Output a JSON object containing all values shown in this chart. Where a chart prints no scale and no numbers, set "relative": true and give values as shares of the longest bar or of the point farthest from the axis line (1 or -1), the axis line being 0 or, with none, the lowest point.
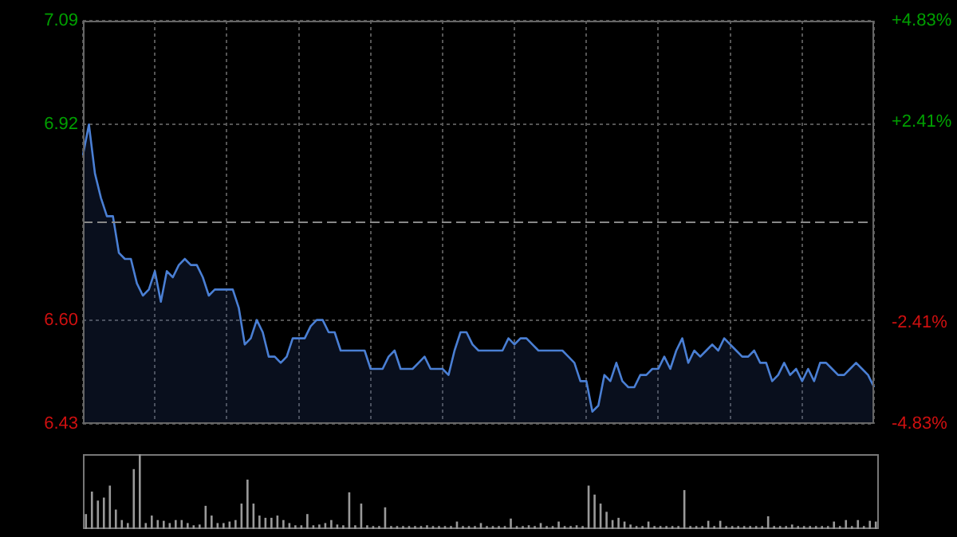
{
  "chart_data": [
    {
      "type": "area",
      "categories": [
        null,
        null,
        null,
        null,
        null,
        null,
        null,
        null,
        null,
        null,
        null,
        null,
        null,
        null,
        null,
        null,
        null,
        null,
        null,
        null,
        null,
        null,
        null,
        null,
        null,
        null,
        null,
        null,
        null,
        null,
        null,
        null,
        null,
        null,
        null,
        null,
        null,
        null,
        null,
        null,
        null,
        null,
        null,
        null,
        null,
        null,
        null,
        null,
        null,
        null,
        null,
        null,
        null,
        null,
        null,
        null,
        null,
        null,
        null,
        null,
        null,
        null,
        null,
        null,
        null,
        null,
        null,
        null,
        null,
        null,
        null,
        null,
        null,
        null,
        null,
        null,
        null,
        null,
        null,
        null,
        null,
        null,
        null,
        null,
        null,
        null,
        null,
        null,
        null,
        null,
        null,
        null,
        null,
        null,
        null,
        null,
        null,
        null,
        null,
        null,
        null,
        null,
        null,
        null,
        null,
        null,
        null,
        null,
        null,
        null,
        null,
        null,
        null,
        null,
        null,
        null,
        null,
        null,
        null,
        null,
        null,
        null,
        null,
        null,
        null,
        null,
        null,
        null,
        null,
        null,
        null,
        null,
        null
      ],
      "series": [
        {
          "color": "#4a7fd4",
          "values": [
            6.87,
            6.92,
            6.84,
            6.8,
            6.77,
            6.77,
            6.71,
            6.7,
            6.7,
            6.66,
            6.64,
            6.65,
            6.68,
            6.63,
            6.68,
            6.67,
            6.69,
            6.7,
            6.69,
            6.69,
            6.67,
            6.64,
            6.65,
            6.65,
            6.65,
            6.65,
            6.62,
            6.56,
            6.57,
            6.6,
            6.58,
            6.54,
            6.54,
            6.53,
            6.54,
            6.57,
            6.57,
            6.57,
            6.59,
            6.6,
            6.6,
            6.58,
            6.58,
            6.55,
            6.55,
            6.55,
            6.55,
            6.55,
            6.52,
            6.52,
            6.52,
            6.54,
            6.55,
            6.52,
            6.52,
            6.52,
            6.53,
            6.54,
            6.52,
            6.52,
            6.52,
            6.51,
            6.55,
            6.58,
            6.58,
            6.56,
            6.55,
            6.55,
            6.55,
            6.55,
            6.55,
            6.57,
            6.56,
            6.57,
            6.57,
            6.56,
            6.55,
            6.55,
            6.55,
            6.55,
            6.55,
            6.54,
            6.53,
            6.5,
            6.5,
            6.45,
            6.46,
            6.51,
            6.5,
            6.53,
            6.5,
            6.49,
            6.49,
            6.51,
            6.51,
            6.52,
            6.52,
            6.54,
            6.52,
            6.55,
            6.57,
            6.53,
            6.55,
            6.54,
            6.55,
            6.56,
            6.55,
            6.57,
            6.56,
            6.55,
            6.54,
            6.54,
            6.55,
            6.53,
            6.53,
            6.5,
            6.51,
            6.53,
            6.51,
            6.52,
            6.5,
            6.52,
            6.5,
            6.53,
            6.53,
            6.52,
            6.51,
            6.51,
            6.52,
            6.53,
            6.52,
            6.51,
            6.49
          ]
        }
      ],
      "ylim": [
        6.43,
        7.09
      ],
      "yticks": [
        7.09,
        {
          "value": 6.92,
          "label": "6.92"
        },
        {
          "value": 6.6,
          "label": "6.60"
        },
        6.43
      ],
      "y2lim": [
        -4.83,
        4.83
      ],
      "y2ticks": [
        {
          "value": 4.83,
          "label": "+4.83%"
        },
        {
          "value": 2.41,
          "label": "+2.41%"
        },
        {
          "value": -2.41,
          "label": "-2.41%"
        },
        {
          "value": -4.83,
          "label": "-4.83%"
        }
      ],
      "ref_lines": [
        {
          "axis": "y",
          "value": 6.76,
          "color": "#888888",
          "line_style": "dashed"
        }
      ],
      "grid": true,
      "legend": false,
      "marker": "none",
      "line_style": "solid"
    },
    {
      "type": "bar",
      "relative": true,
      "categories": [
        null,
        null,
        null,
        null,
        null,
        null,
        null,
        null,
        null,
        null,
        null,
        null,
        null,
        null,
        null,
        null,
        null,
        null,
        null,
        null,
        null,
        null,
        null,
        null,
        null,
        null,
        null,
        null,
        null,
        null,
        null,
        null,
        null,
        null,
        null,
        null,
        null,
        null,
        null,
        null,
        null,
        null,
        null,
        null,
        null,
        null,
        null,
        null,
        null,
        null,
        null,
        null,
        null,
        null,
        null,
        null,
        null,
        null,
        null,
        null,
        null,
        null,
        null,
        null,
        null,
        null,
        null,
        null,
        null,
        null,
        null,
        null,
        null,
        null,
        null,
        null,
        null,
        null,
        null,
        null,
        null,
        null,
        null,
        null,
        null,
        null,
        null,
        null,
        null,
        null,
        null,
        null,
        null,
        null,
        null,
        null,
        null,
        null,
        null,
        null,
        null,
        null,
        null,
        null,
        null,
        null,
        null,
        null,
        null,
        null,
        null,
        null,
        null,
        null,
        null,
        null,
        null,
        null,
        null,
        null,
        null,
        null,
        null,
        null,
        null,
        null,
        null,
        null,
        null,
        null,
        null,
        null,
        null
      ],
      "values": [
        0.2,
        0.5,
        0.38,
        0.42,
        0.58,
        0.26,
        0.12,
        0.08,
        0.8,
        1,
        0.08,
        0.18,
        0.12,
        0.11,
        0.08,
        0.12,
        0.12,
        0.08,
        0.05,
        0.06,
        0.31,
        0.18,
        0.08,
        0.08,
        0.1,
        0.12,
        0.34,
        0.66,
        0.34,
        0.18,
        0.15,
        0.15,
        0.18,
        0.12,
        0.08,
        0.05,
        0.05,
        0.2,
        0.05,
        0.06,
        0.08,
        0.12,
        0.06,
        0.05,
        0.49,
        0.05,
        0.34,
        0.05,
        0.04,
        0.04,
        0.29,
        0.04,
        0.04,
        0.04,
        0.04,
        0.04,
        0.04,
        0.05,
        0.04,
        0.04,
        0.04,
        0.04,
        0.1,
        0.04,
        0.04,
        0.04,
        0.08,
        0.04,
        0.04,
        0.04,
        0.04,
        0.14,
        0.04,
        0.04,
        0.05,
        0.04,
        0.08,
        0.04,
        0.04,
        0.1,
        0.04,
        0.04,
        0.05,
        0.04,
        0.58,
        0.46,
        0.34,
        0.23,
        0.12,
        0.15,
        0.1,
        0.06,
        0.04,
        0.04,
        0.1,
        0.04,
        0.04,
        0.04,
        0.04,
        0.04,
        0.52,
        0.04,
        0.04,
        0.04,
        0.11,
        0.04,
        0.11,
        0.04,
        0.04,
        0.04,
        0.04,
        0.04,
        0.04,
        0.04,
        0.17,
        0.04,
        0.04,
        0.04,
        0.06,
        0.04,
        0.04,
        0.04,
        0.04,
        0.04,
        0.04,
        0.1,
        0.04,
        0.12,
        0.04,
        0.12,
        0.04,
        0.11,
        0.1
      ],
      "color": "#999999",
      "grid": false,
      "legend": false
    }
  ]
}
